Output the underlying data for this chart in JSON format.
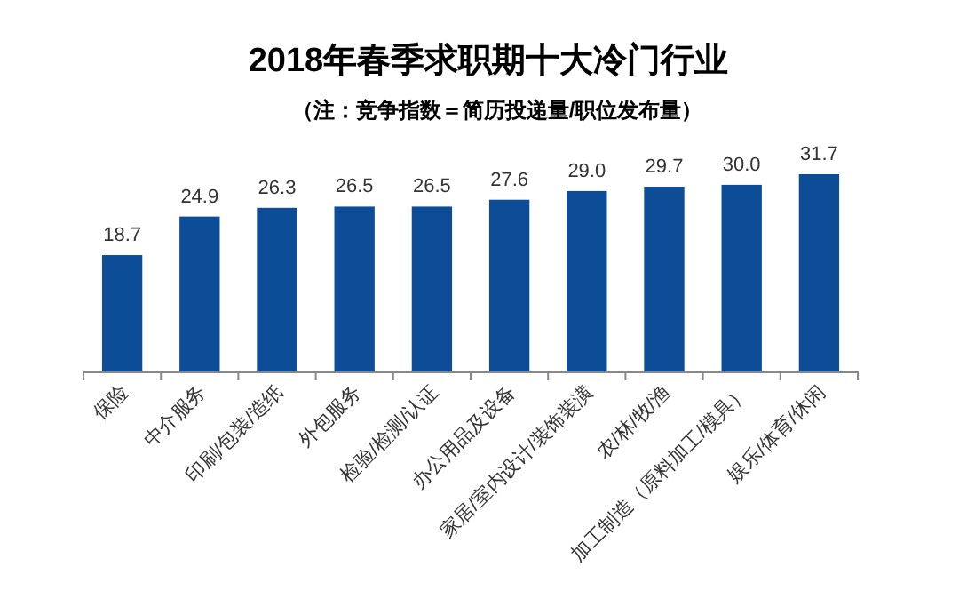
{
  "chart_data": {
    "type": "bar",
    "title": "2018年春季求职期十大冷门行业",
    "subtitle": "（注：竞争指数＝简历投递量/职位发布量）",
    "categories": [
      "保险",
      "中介服务",
      "印刷/包装/造纸",
      "外包服务",
      "检验/检测/认证",
      "办公用品及设备",
      "家居/室内设计/装饰装潢",
      "农/林/牧/渔",
      "加工制造（原料加工/模具）",
      "娱乐/体育/休闲"
    ],
    "values": [
      18.7,
      24.9,
      26.3,
      26.5,
      26.5,
      27.6,
      29.0,
      29.7,
      30.0,
      31.7
    ],
    "value_labels": [
      "18.7",
      "24.9",
      "26.3",
      "26.5",
      "26.5",
      "27.6",
      "29.0",
      "29.7",
      "30.0",
      "31.7"
    ],
    "color": "#0d4d97"
  }
}
